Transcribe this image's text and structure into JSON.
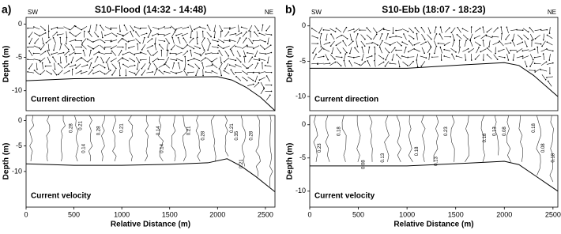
{
  "chart_data": [
    {
      "type": "vector",
      "panel": "a)",
      "title": "S10-Flood (14:32 - 14:48)",
      "annotations": [
        "SW",
        "NE",
        "Current direction"
      ],
      "ylabel": "Depth (m)",
      "xlim": [
        0,
        2600
      ],
      "ylim": [
        -13,
        1
      ],
      "yticks": [
        0,
        -5,
        -10
      ],
      "x": [
        0,
        500,
        1000,
        1500,
        2000,
        2150,
        2300,
        2450,
        2600
      ],
      "values": [
        -8.5,
        -8.2,
        -8.1,
        -8.0,
        -7.9,
        -8.4,
        -9.5,
        -11,
        -13
      ]
    },
    {
      "type": "contour",
      "annotations": [
        "Current velocity"
      ],
      "ylabel": "Depth (m)",
      "xlabel": "Relative Distance (m)",
      "xlim": [
        0,
        2600
      ],
      "ylim": [
        -17,
        1
      ],
      "yticks": [
        0,
        -5,
        -10
      ],
      "xticks": [
        0,
        500,
        1000,
        1500,
        2000,
        2500
      ],
      "x": [
        0,
        500,
        1000,
        1500,
        1900,
        2100,
        2250,
        2400,
        2600
      ],
      "values": [
        -8.5,
        -8.8,
        -8.8,
        -8.6,
        -8.3,
        -7.5,
        -9,
        -11,
        -14
      ],
      "contour_labels": [
        0.28,
        0.21,
        0.28,
        0.21,
        0.14,
        0.14,
        0.21,
        0.28,
        0.21,
        0.35,
        0.28,
        0.14,
        0.21
      ]
    },
    {
      "type": "vector",
      "panel": "b)",
      "title": "S10-Ebb (18:07 - 18:23)",
      "annotations": [
        "SW",
        "NE",
        "Current direction"
      ],
      "ylabel": "Depth (m)",
      "xlim": [
        0,
        2550
      ],
      "ylim": [
        -12,
        1.2
      ],
      "yticks": [
        0,
        -5,
        -10
      ],
      "x": [
        0,
        500,
        1000,
        1600,
        2000,
        2150,
        2300,
        2450,
        2550
      ],
      "values": [
        -6,
        -6,
        -6,
        -5.5,
        -5.2,
        -5.6,
        -7,
        -8.8,
        -10
      ]
    },
    {
      "type": "contour",
      "annotations": [
        "Current velocity"
      ],
      "ylabel": "Depth (m)",
      "xlabel": "Relative Distance (m)",
      "xlim": [
        0,
        2550
      ],
      "ylim": [
        -12.4,
        1.4
      ],
      "yticks": [
        0,
        -5,
        -10
      ],
      "xticks": [
        0,
        500,
        1000,
        1500,
        2000,
        2500
      ],
      "x": [
        0,
        500,
        1000,
        1600,
        2000,
        2150,
        2350,
        2450,
        2550
      ],
      "values": [
        -6.2,
        -6.2,
        -6.2,
        -5.8,
        -5.5,
        -6,
        -8,
        -9,
        -10
      ],
      "contour_labels": [
        0.23,
        0.18,
        0.08,
        0.13,
        0.13,
        0.18,
        0.23,
        0.18,
        0.13,
        0.08,
        0.18,
        0.08,
        0.18
      ]
    }
  ]
}
